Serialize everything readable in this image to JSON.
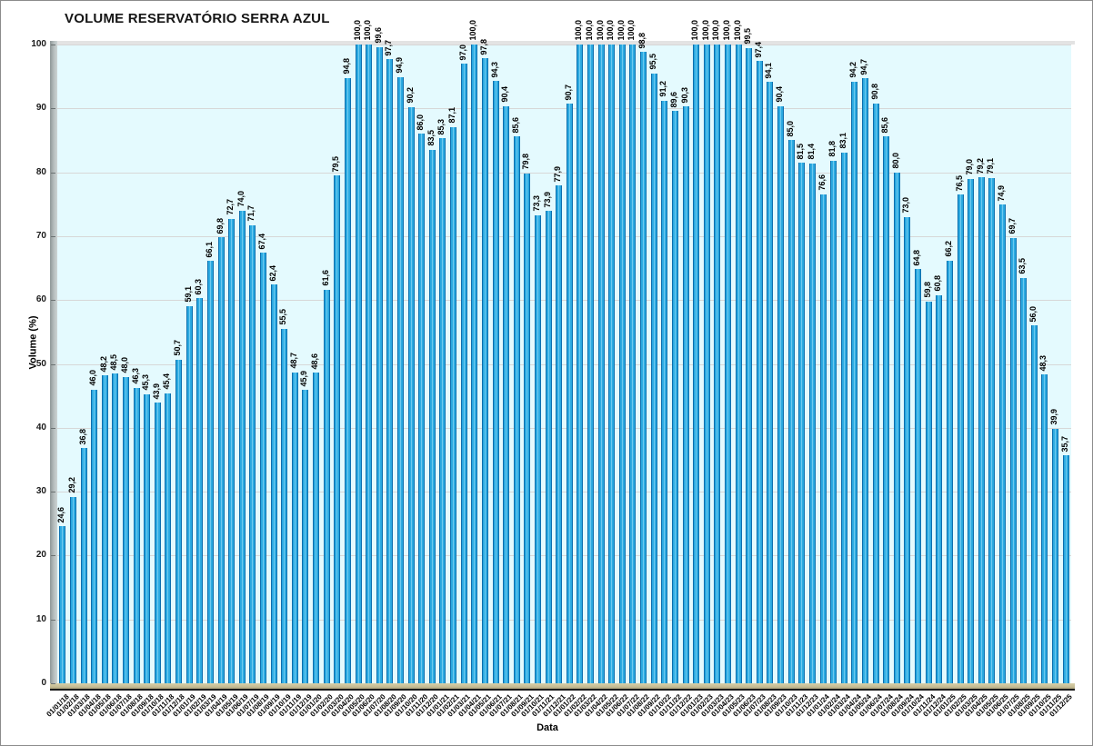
{
  "chart": {
    "title": "VOLUME RESERVATÓRIO SERRA AZUL",
    "xlabel": "Data",
    "ylabel": "Volume (%)"
  },
  "chart_data": {
    "type": "bar",
    "title": "VOLUME RESERVATÓRIO SERRA AZUL",
    "xlabel": "Data",
    "ylabel": "Volume (%)",
    "ylim": [
      0,
      100
    ],
    "ytick_step": 10,
    "grid": true,
    "legend": false,
    "decimal_separator": ",",
    "value_label_decimals": 1,
    "colors": {
      "bar_fill": "#29a8e0",
      "bar_edge": "#0d6fae",
      "bar_highlight": "#6ecaf0",
      "plot_background": "#e4fafe",
      "gridline": "#d7d7d7",
      "floor": "#c4bb92",
      "wall": "#b7bfbf",
      "text": "#000000"
    },
    "categories": [
      "01/01/18",
      "01/02/18",
      "01/03/18",
      "01/04/18",
      "01/05/18",
      "01/06/18",
      "01/07/18",
      "01/08/18",
      "01/09/18",
      "01/10/18",
      "01/11/18",
      "01/12/18",
      "01/01/19",
      "01/02/19",
      "01/03/19",
      "01/04/19",
      "01/05/19",
      "01/06/19",
      "01/07/19",
      "01/08/19",
      "01/09/19",
      "01/10/19",
      "01/11/19",
      "01/12/19",
      "01/01/20",
      "01/02/20",
      "01/03/20",
      "01/04/20",
      "01/05/20",
      "01/06/20",
      "01/07/20",
      "01/08/20",
      "01/09/20",
      "01/10/20",
      "01/11/20",
      "01/12/20",
      "01/01/21",
      "01/02/21",
      "01/03/21",
      "01/04/21",
      "01/05/21",
      "01/06/21",
      "01/07/21",
      "01/08/21",
      "01/09/21",
      "01/10/21",
      "01/11/21",
      "01/12/21",
      "01/01/22",
      "01/02/22",
      "01/03/22",
      "01/04/22",
      "01/05/22",
      "01/06/22",
      "01/07/22",
      "01/08/22",
      "01/09/22",
      "01/10/22",
      "01/11/22",
      "01/12/22",
      "01/01/23",
      "01/02/23",
      "01/03/23",
      "01/04/23",
      "01/05/23",
      "01/06/23",
      "01/07/23",
      "01/08/23",
      "01/09/23",
      "01/10/23",
      "01/11/23",
      "01/12/23",
      "01/01/24",
      "01/02/24",
      "01/03/24",
      "01/04/24",
      "01/05/24",
      "01/06/24",
      "01/07/24",
      "01/08/24",
      "01/09/24",
      "01/10/24",
      "01/11/24",
      "01/12/24",
      "01/01/25",
      "01/02/25",
      "01/03/25",
      "01/04/25",
      "01/05/25",
      "01/06/25",
      "01/07/25",
      "01/08/25",
      "01/09/25",
      "01/10/25",
      "01/11/25",
      "01/12/25"
    ],
    "values": [
      24.6,
      29.2,
      36.8,
      46.0,
      48.2,
      48.5,
      48.0,
      46.3,
      45.3,
      43.9,
      45.4,
      50.7,
      59.1,
      60.3,
      66.1,
      69.8,
      72.7,
      74.0,
      71.7,
      67.4,
      62.4,
      55.5,
      48.7,
      45.9,
      48.6,
      61.6,
      79.5,
      94.8,
      100.0,
      100.0,
      99.6,
      97.7,
      94.9,
      90.2,
      86.0,
      83.5,
      85.3,
      87.1,
      97.0,
      100.0,
      97.8,
      94.3,
      90.4,
      85.6,
      79.8,
      73.3,
      73.9,
      77.9,
      90.7,
      100.0,
      100.0,
      100.0,
      100.0,
      100.0,
      100.0,
      98.8,
      95.5,
      91.2,
      89.6,
      90.3,
      100.0,
      100.0,
      100.0,
      100.0,
      100.0,
      99.5,
      97.4,
      94.1,
      90.4,
      85.0,
      81.5,
      81.4,
      76.6,
      81.8,
      83.1,
      94.2,
      94.7,
      90.8,
      85.6,
      80.0,
      73.0,
      64.8,
      59.8,
      60.8,
      66.2,
      76.5,
      79.0,
      79.2,
      79.1,
      74.9,
      69.7,
      63.5,
      56.0,
      48.3,
      39.9,
      35.7
    ]
  }
}
